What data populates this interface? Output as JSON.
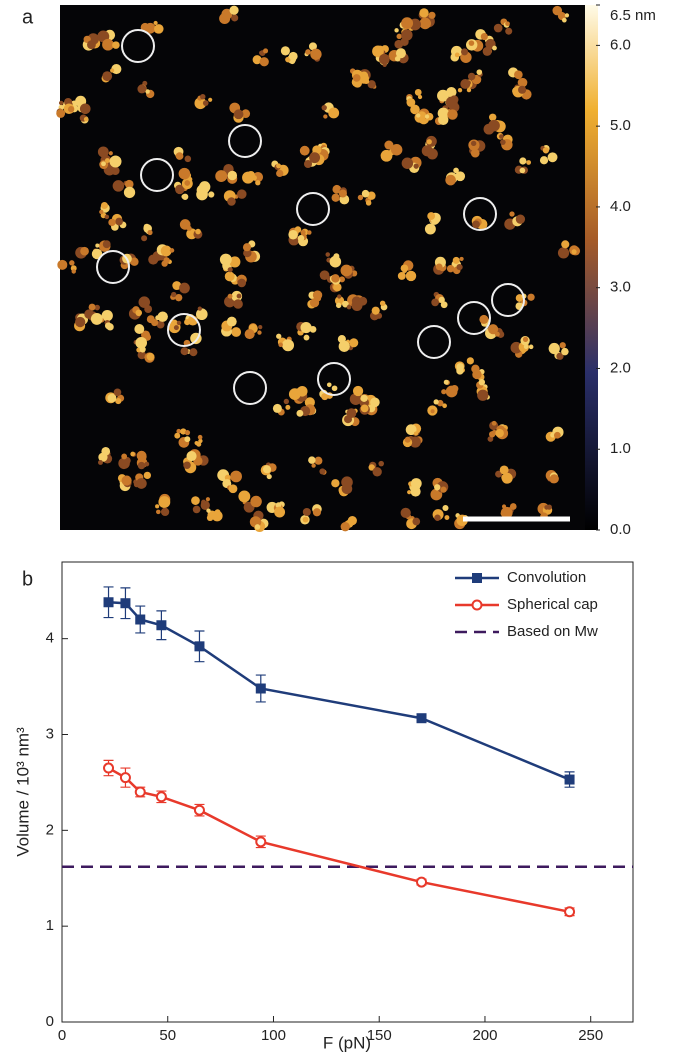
{
  "panel_a": {
    "label": "a",
    "colorbar": {
      "lim": [
        0,
        6.5
      ],
      "ticks": [
        {
          "value": 6.5,
          "label": "6.5 nm"
        },
        {
          "value": 6,
          "label": "6.0"
        },
        {
          "value": 5,
          "label": "5.0"
        },
        {
          "value": 4,
          "label": "4.0"
        },
        {
          "value": 3,
          "label": "3.0"
        },
        {
          "value": 2,
          "label": "2.0"
        },
        {
          "value": 1,
          "label": "1.0"
        },
        {
          "value": 0,
          "label": "0.0"
        }
      ]
    }
  },
  "chart_data": {
    "type": "line",
    "panel_label": "b",
    "x_label": "F (pN)",
    "y_label": "Volume / 10³ nm³",
    "x": [
      22,
      30,
      37,
      47,
      65,
      94,
      170,
      240
    ],
    "series": [
      {
        "name": "Convolution",
        "color": "#1f3c7a",
        "marker": "square",
        "values": [
          4.38,
          4.37,
          4.2,
          4.14,
          3.92,
          3.48,
          3.17,
          2.53
        ],
        "errors": [
          0.16,
          0.16,
          0.14,
          0.15,
          0.16,
          0.14,
          0.03,
          0.08
        ]
      },
      {
        "name": "Spherical cap",
        "color": "#e8392b",
        "marker": "circle",
        "values": [
          2.65,
          2.55,
          2.4,
          2.35,
          2.21,
          1.88,
          1.46,
          1.15
        ],
        "errors": [
          0.08,
          0.1,
          0.05,
          0.06,
          0.06,
          0.06,
          0.03,
          0.04
        ]
      }
    ],
    "hlines": [
      {
        "name": "Based on Mw",
        "color": "#3d1a5e",
        "value": 1.62,
        "dashed": true
      }
    ],
    "xlim": [
      0,
      270
    ],
    "ylim": [
      0,
      4.8
    ],
    "xticks": [
      0,
      50,
      100,
      150,
      200,
      250
    ],
    "yticks": [
      0,
      1,
      2,
      3,
      4
    ],
    "legend": "upper-right"
  }
}
